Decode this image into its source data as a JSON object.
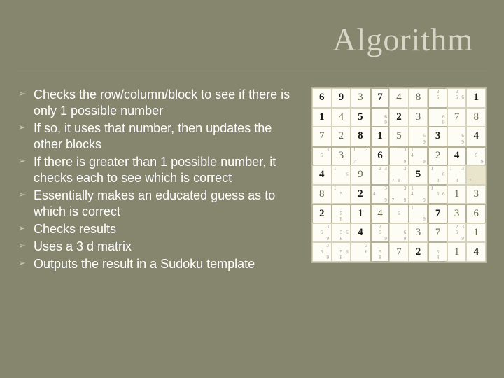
{
  "colors": {
    "slide_bg": "#86866f",
    "title_color": "#d7d7c8",
    "rule_color": "#cfcfbe",
    "bullet_text": "#ffffff",
    "bullet_glyph": "#c9c9b6",
    "sudoku_border": "#b6b39a",
    "sudoku_cell_border": "#d6d3bc",
    "sudoku_bg": "#fdfcf5",
    "given_color": "#1a1a1a",
    "solved_color": "#6a6a52",
    "pencil_color": "#a09e86",
    "active_cell_bg": "#e8e5cc"
  },
  "title": "Algorithm",
  "bullets": [
    "Checks the row/column/block to see if there is only 1 possible number",
    "If so, it uses that number, then updates the other blocks",
    "If there is greater than 1 possible number, it checks each to see which is correct",
    "Essentially makes an educated guess as to which is correct",
    "Checks results",
    "Uses a 3 d matrix",
    "Outputs the result in a Sudoku template"
  ],
  "sudoku": {
    "type": "grid",
    "size": 9,
    "cells": [
      [
        {
          "v": "6",
          "t": "g"
        },
        {
          "v": "9",
          "t": "g"
        },
        {
          "v": "3",
          "t": "s"
        },
        {
          "v": "7",
          "t": "g"
        },
        {
          "v": "4",
          "t": "s"
        },
        {
          "v": "8",
          "t": "s"
        },
        {
          "p": [
            2,
            5
          ]
        },
        {
          "p": [
            2,
            5,
            6
          ]
        },
        {
          "v": "1",
          "t": "g"
        }
      ],
      [
        {
          "v": "1",
          "t": "g"
        },
        {
          "v": "4",
          "t": "s"
        },
        {
          "v": "5",
          "t": "g"
        },
        {
          "p": [
            6,
            9
          ]
        },
        {
          "v": "2",
          "t": "g"
        },
        {
          "v": "3",
          "t": "s"
        },
        {
          "p": [
            6,
            9
          ]
        },
        {
          "v": "7",
          "t": "s"
        },
        {
          "v": "8",
          "t": "s"
        }
      ],
      [
        {
          "v": "7",
          "t": "s"
        },
        {
          "v": "2",
          "t": "s"
        },
        {
          "v": "8",
          "t": "g"
        },
        {
          "v": "1",
          "t": "g"
        },
        {
          "v": "5",
          "t": "s"
        },
        {
          "p": [
            6,
            9
          ]
        },
        {
          "v": "3",
          "t": "g"
        },
        {
          "p": [
            6,
            9
          ]
        },
        {
          "v": "4",
          "t": "g"
        }
      ],
      [
        {
          "p": [
            3,
            5
          ]
        },
        {
          "v": "3",
          "t": "s"
        },
        {
          "p": [
            1,
            3,
            7
          ]
        },
        {
          "v": "6",
          "t": "g"
        },
        {
          "p": [
            1,
            3,
            9
          ]
        },
        {
          "p": [
            1,
            4,
            9
          ]
        },
        {
          "v": "2",
          "t": "s"
        },
        {
          "v": "4",
          "t": "g"
        },
        {
          "p": [
            5,
            9
          ]
        }
      ],
      [
        {
          "v": "4",
          "t": "g"
        },
        {
          "p": [
            1,
            6
          ]
        },
        {
          "v": "9",
          "t": "s"
        },
        {
          "p": [
            2,
            3
          ]
        },
        {
          "p": [
            3,
            7,
            8
          ]
        },
        {
          "v": "5",
          "t": "g"
        },
        {
          "p": [
            1,
            6,
            8
          ]
        },
        {
          "p": [
            1,
            3,
            8
          ]
        },
        {
          "p": [
            7
          ],
          "active": true
        }
      ],
      [
        {
          "v": "8",
          "t": "s"
        },
        {
          "p": [
            1,
            5
          ]
        },
        {
          "v": "2",
          "t": "g"
        },
        {
          "p": [
            3,
            4,
            9
          ]
        },
        {
          "p": [
            3,
            7,
            9
          ]
        },
        {
          "p": [
            1,
            4,
            9
          ]
        },
        {
          "p": [
            1,
            5,
            6
          ]
        },
        {
          "v": "1",
          "t": "s"
        },
        {
          "v": "3",
          "t": "s"
        }
      ],
      [
        {
          "v": "2",
          "t": "g"
        },
        {
          "p": [
            5,
            8
          ]
        },
        {
          "v": "1",
          "t": "g"
        },
        {
          "v": "4",
          "t": "s"
        },
        {
          "p": [
            5
          ]
        },
        {
          "p": [
            1,
            9
          ]
        },
        {
          "v": "7",
          "t": "g"
        },
        {
          "v": "3",
          "t": "s"
        },
        {
          "v": "6",
          "t": "s"
        }
      ],
      [
        {
          "p": [
            3,
            5,
            9
          ]
        },
        {
          "p": [
            5,
            6,
            8
          ]
        },
        {
          "v": "4",
          "t": "g"
        },
        {
          "p": [
            2,
            5,
            9
          ]
        },
        {
          "p": [
            6,
            9
          ]
        },
        {
          "v": "3",
          "t": "s"
        },
        {
          "v": "7",
          "t": "s"
        },
        {
          "p": [
            2,
            5,
            3,
            9
          ]
        },
        {
          "v": "1",
          "t": "s"
        }
      ],
      [
        {
          "p": [
            3,
            5,
            9
          ]
        },
        {
          "p": [
            5,
            6,
            8
          ]
        },
        {
          "p": [
            3,
            6
          ]
        },
        {
          "p": [
            5,
            8
          ]
        },
        {
          "v": "7",
          "t": "s"
        },
        {
          "v": "2",
          "t": "g"
        },
        {
          "p": [
            5,
            8
          ]
        },
        {
          "v": "1",
          "t": "s"
        },
        {
          "v": "4",
          "t": "g"
        }
      ]
    ]
  }
}
